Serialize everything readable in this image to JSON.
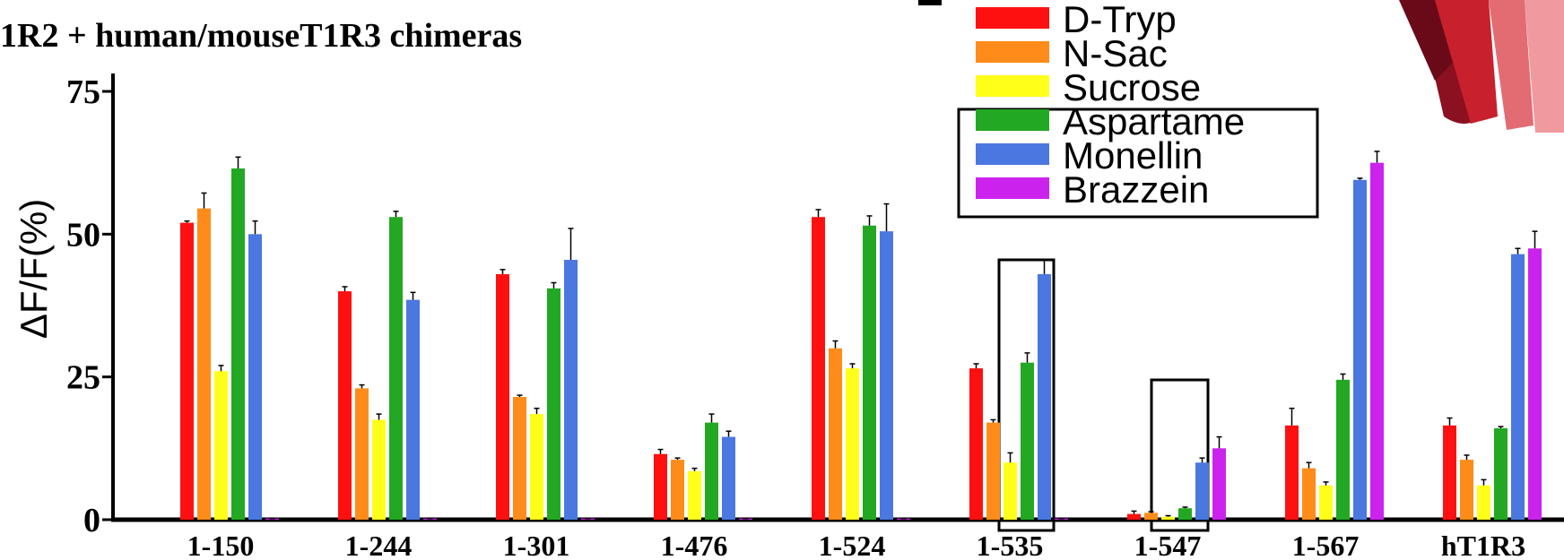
{
  "chart_data": {
    "type": "bar",
    "title": "1R2 + human/mouseT1R3 chimeras",
    "y_label": "ΔF/F(%)",
    "categories": [
      "1-150",
      "1-244",
      "1-301",
      "1-476",
      "1-524",
      "1-535",
      "1-547",
      "1-567",
      "hT1R3"
    ],
    "series": [
      {
        "name": "D-Tryp",
        "color": "#ff1010",
        "values": [
          52,
          40,
          43,
          11.5,
          53,
          26.5,
          1,
          16.5,
          16.5
        ],
        "errors": [
          0.3,
          0.8,
          0.8,
          0.8,
          1.3,
          0.8,
          0.5,
          3,
          1.3
        ]
      },
      {
        "name": "N-Sac",
        "color": "#ff8c1a",
        "values": [
          54.5,
          23,
          21.5,
          10.5,
          30,
          17,
          1.2,
          9,
          10.5
        ],
        "errors": [
          2.7,
          0.6,
          0.3,
          0.3,
          1.3,
          0.5,
          0.2,
          1,
          0.8
        ]
      },
      {
        "name": "Sucrose",
        "color": "#ffff1a",
        "values": [
          26,
          17.5,
          18.5,
          8.5,
          26.5,
          10,
          0.5,
          6,
          6
        ],
        "errors": [
          1,
          1,
          1,
          0.5,
          0.8,
          1.7,
          0.2,
          0.6,
          1
        ]
      },
      {
        "name": "Aspartame",
        "color": "#22a822",
        "values": [
          61.5,
          53,
          40.5,
          17,
          51.5,
          27.5,
          2,
          24.5,
          16
        ],
        "errors": [
          2,
          1,
          1,
          1.5,
          1.7,
          1.7,
          0.2,
          1,
          0.3
        ]
      },
      {
        "name": "Monellin",
        "color": "#4a78e0",
        "values": [
          50,
          38.5,
          45.5,
          14.5,
          50.5,
          43,
          10,
          59.5,
          46.5
        ],
        "errors": [
          2.3,
          1.3,
          5.5,
          1,
          4.8,
          2.5,
          0.8,
          0.3,
          1
        ]
      },
      {
        "name": "Brazzein",
        "color": "#cc22ee",
        "values": [
          0.2,
          0.2,
          0.2,
          0.2,
          0.2,
          0.2,
          12.5,
          62.5,
          47.5
        ],
        "errors": [
          0,
          0,
          0,
          0,
          0,
          0,
          2,
          2,
          3
        ]
      }
    ],
    "ylim": [
      0,
      75
    ],
    "yticks": [
      0,
      25,
      50,
      75
    ],
    "grid": false
  }
}
